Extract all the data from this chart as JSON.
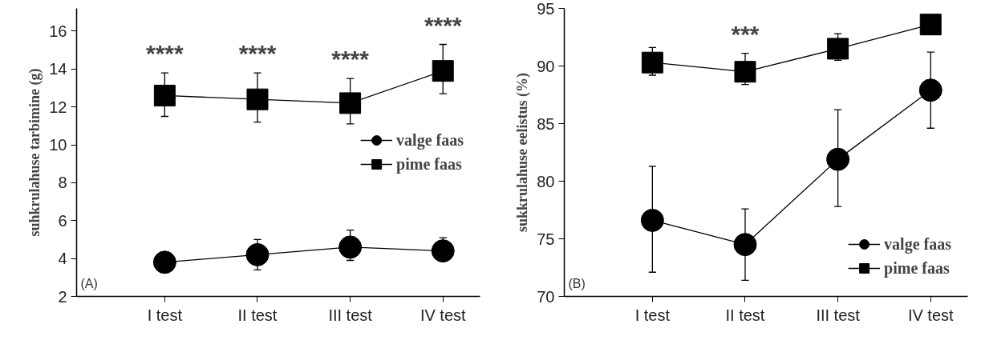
{
  "chart_data": [
    {
      "type": "line",
      "ylabel": "suhkrulahuse tarbimine (g)",
      "categories": [
        "I test",
        "II test",
        "III test",
        "IV test"
      ],
      "ylim": [
        2,
        17.2
      ],
      "yticks": [
        2,
        4,
        6,
        8,
        10,
        12,
        14,
        16
      ],
      "legend": "right",
      "grid": false,
      "line_style": "solid",
      "series": [
        {
          "name": "valge faas",
          "color": "#000000",
          "marker": "circle",
          "values": [
            3.8,
            4.2,
            4.6,
            4.4
          ],
          "errors": [
            0.4,
            [
              3.4,
              5.0
            ],
            [
              3.9,
              5.5
            ],
            [
              3.9,
              5.1
            ]
          ]
        },
        {
          "name": "pime faas",
          "color": "#000000",
          "marker": "square",
          "values": [
            12.6,
            12.4,
            12.2,
            13.9
          ],
          "errors": [
            [
              11.5,
              13.8
            ],
            [
              11.2,
              13.8
            ],
            [
              11.1,
              13.5
            ],
            [
              12.7,
              15.3
            ]
          ]
        }
      ],
      "annotations": [
        "****",
        "****",
        "****",
        "****",
        "(A)"
      ]
    },
    {
      "type": "line",
      "ylabel": "sukkrulahuse eelistus (%)",
      "categories": [
        "I test",
        "II test",
        "III test",
        "IV test"
      ],
      "ylim": [
        70,
        95
      ],
      "yticks": [
        70,
        75,
        80,
        85,
        90,
        95
      ],
      "legend": "bottom right",
      "grid": false,
      "line_style": "solid",
      "series": [
        {
          "name": "valge faas",
          "color": "#000000",
          "marker": "circle",
          "values": [
            76.6,
            74.5,
            81.9,
            87.9
          ],
          "errors": [
            [
              72.1,
              81.3
            ],
            [
              71.4,
              77.6
            ],
            [
              77.8,
              86.2
            ],
            [
              84.6,
              91.2
            ]
          ]
        },
        {
          "name": "pime faas",
          "color": "#000000",
          "marker": "square",
          "values": [
            90.3,
            89.5,
            91.5,
            93.6
          ],
          "errors": [
            [
              89.2,
              91.6
            ],
            [
              88.4,
              91.1
            ],
            [
              90.5,
              92.8
            ],
            null
          ]
        }
      ],
      "annotations": [
        "***",
        "(B)"
      ]
    }
  ]
}
